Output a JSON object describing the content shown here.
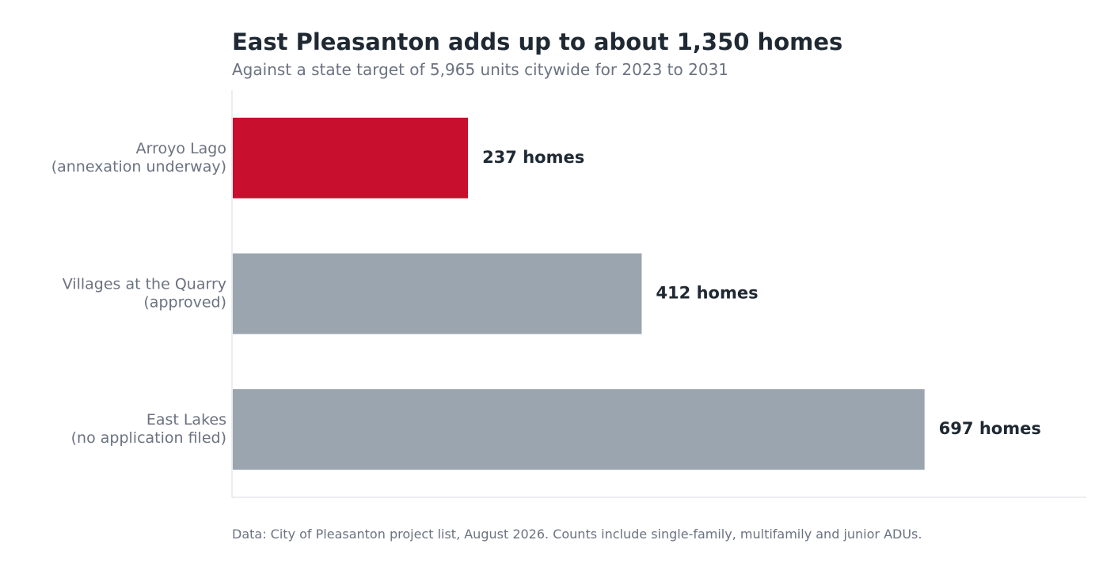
{
  "chart_data": {
    "type": "bar",
    "orientation": "horizontal",
    "title": "East Pleasanton adds up to about 1,350 homes",
    "subtitle": "Against a state target of 5,965 units citywide for 2023 to 2031",
    "categories": [
      [
        "Arroyo Lago",
        "(annexation underway)"
      ],
      [
        "Villages at the Quarry",
        "(approved)"
      ],
      [
        "East Lakes",
        "(no application filed)"
      ]
    ],
    "values": [
      237,
      412,
      697
    ],
    "value_labels": [
      "237 homes",
      "412 homes",
      "697 homes"
    ],
    "bar_colors": [
      "#c8102e",
      "#9ba5b0",
      "#9ba5b0"
    ],
    "xlim": [
      0,
      860
    ],
    "grid": false,
    "footnote": "Data: City of Pleasanton project list, August 2026. Counts include single-family, multifamily and junior ADUs."
  },
  "colors": {
    "highlight": "#c8102e",
    "bar": "#9ba5b0",
    "title": "#1f2933",
    "muted": "#6b7280",
    "axis": "#e5e7eb"
  }
}
